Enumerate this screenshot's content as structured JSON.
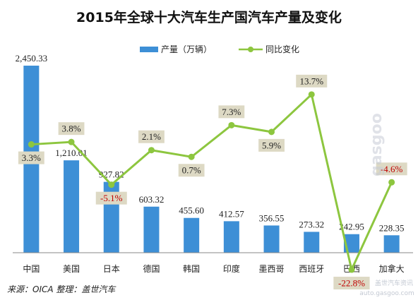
{
  "chart_data": {
    "type": "bar",
    "title": "2015年全球十大汽车生产国汽车产量及变化",
    "categories": [
      "中国",
      "美国",
      "日本",
      "德国",
      "韩国",
      "印度",
      "墨西哥",
      "西班牙",
      "巴西",
      "加拿大"
    ],
    "series": [
      {
        "name": "产量（万辆）",
        "type": "bar",
        "values": [
          2450.33,
          1210.01,
          927.82,
          603.32,
          455.6,
          412.57,
          356.55,
          273.32,
          242.95,
          228.35
        ],
        "labels": [
          "2,450.33",
          "1,210.01",
          "927.82",
          "603.32",
          "455.60",
          "412.57",
          "356.55",
          "273.32",
          "242.95",
          "228.35"
        ],
        "color": "#3d8fd6"
      },
      {
        "name": "同比变化",
        "type": "line",
        "values": [
          3.3,
          3.8,
          -5.1,
          2.1,
          0.7,
          7.3,
          5.9,
          13.7,
          -22.8,
          -4.6
        ],
        "labels": [
          "3.3%",
          "3.8%",
          "-5.1%",
          "2.1%",
          "0.7%",
          "7.3%",
          "5.9%",
          "13.7%",
          "-22.8%",
          "-4.6%"
        ],
        "color": "#8dc63f"
      }
    ],
    "legend_position": "top-center",
    "grid": false,
    "ylim_bar": [
      0,
      2500
    ],
    "ylim_line": [
      -25,
      15
    ],
    "colors": {
      "positive_label": "#222222",
      "negative_label": "#c00000",
      "label_box": "#ddd9c4"
    }
  },
  "source_text": "来源：OICA  整理：盖世汽车",
  "watermark": {
    "logo": "gasgoo",
    "tagline": "盖世汽车资讯",
    "url": "auto.gasgoo.com"
  }
}
